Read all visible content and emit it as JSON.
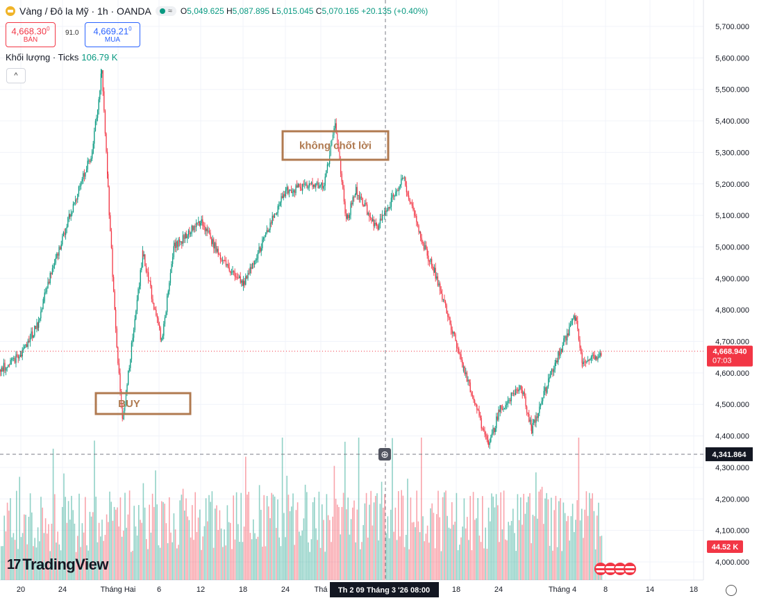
{
  "header": {
    "symbol": "Vàng / Đô la Mỹ · 1h · OANDA",
    "tag": "≈",
    "o_label": "O",
    "o": "5,049.625",
    "h_label": "H",
    "h": "5,087.895",
    "l_label": "L",
    "l": "5,015.045",
    "c_label": "C",
    "c": "5,070.165",
    "change": "+20.135 (+0.40%)"
  },
  "trade": {
    "sell_price": "4,668.30",
    "sell_sup": "0",
    "sell_label": "BÁN",
    "spread": "91.0",
    "buy_price": "4,669.21",
    "buy_sup": "0",
    "buy_label": "MUA"
  },
  "volume": {
    "label": "Khối lượng · Ticks",
    "value": "106.79 K"
  },
  "collapse": "^",
  "logo": {
    "mark": "17",
    "text": "TradingView"
  },
  "colors": {
    "up": "#089981",
    "down": "#f23645",
    "annotation": "#b07a50",
    "axis_text": "#131722",
    "grid": "#f0f3fa"
  },
  "chart_data": {
    "type": "candlestick",
    "symbol": "XAU/USD",
    "interval": "1h",
    "ylim": [
      3980,
      5760
    ],
    "y_ticks": [
      4000,
      4100,
      4200,
      4300,
      4400,
      4500,
      4600,
      4700,
      4800,
      4900,
      5000,
      5100,
      5200,
      5300,
      5400,
      5500,
      5600,
      5700
    ],
    "y_tick_labels": [
      "4,000.000",
      "4,100.000",
      "4,200.000",
      "4,300.000",
      "4,400.000",
      "4,500.000",
      "4,600.000",
      "4,700.000",
      "4,800.000",
      "4,900.000",
      "5,000.000",
      "5,100.000",
      "5,200.000",
      "5,300.000",
      "5,400.000",
      "5,500.000",
      "5,600.000",
      "5,700.000"
    ],
    "x_ticks": [
      "20",
      "24",
      "Tháng Hai",
      "6",
      "12",
      "18",
      "24",
      "Thá",
      "18",
      "24",
      "Tháng 4",
      "8",
      "14",
      "18"
    ],
    "price_path": [
      {
        "t": "start",
        "v": 4610
      },
      {
        "t": "Jan 20",
        "v": 4660
      },
      {
        "t": "Jan 22",
        "v": 4760
      },
      {
        "t": "Jan 23",
        "v": 4840
      },
      {
        "t": "Jan 26",
        "v": 5100
      },
      {
        "t": "Jan 28",
        "v": 5300
      },
      {
        "t": "Jan 29",
        "v": 5560
      },
      {
        "t": "Jan 30",
        "v": 5180
      },
      {
        "t": "Jan 31",
        "v": 4730
      },
      {
        "t": "Feb 2",
        "v": 4450
      },
      {
        "t": "Feb 4",
        "v": 4980
      },
      {
        "t": "Feb 6",
        "v": 4700
      },
      {
        "t": "Feb 9",
        "v": 5000
      },
      {
        "t": "Feb 12",
        "v": 5080
      },
      {
        "t": "Feb 16",
        "v": 4960
      },
      {
        "t": "Feb 18",
        "v": 4880
      },
      {
        "t": "Feb 23",
        "v": 5180
      },
      {
        "t": "Feb 27",
        "v": 5200
      },
      {
        "t": "Mar 1",
        "v": 5390
      },
      {
        "t": "Mar 3",
        "v": 5080
      },
      {
        "t": "Mar 5",
        "v": 5180
      },
      {
        "t": "Mar 9",
        "v": 5060
      },
      {
        "t": "Mar 12",
        "v": 5220
      },
      {
        "t": "Mar 16",
        "v": 5030
      },
      {
        "t": "Mar 18",
        "v": 4920
      },
      {
        "t": "Mar 20",
        "v": 4620
      },
      {
        "t": "Mar 23",
        "v": 4360
      },
      {
        "t": "Mar 24",
        "v": 4480
      },
      {
        "t": "Mar 27",
        "v": 4560
      },
      {
        "t": "Mar 30",
        "v": 4420
      },
      {
        "t": "Apr 2",
        "v": 4640
      },
      {
        "t": "Apr 4",
        "v": 4780
      },
      {
        "t": "Apr 6",
        "v": 4620
      },
      {
        "t": "Apr 7",
        "v": 4669
      }
    ],
    "last_price": "4,668.940",
    "countdown": "07:03",
    "crosshair_price": "4,341.864",
    "crosshair_time": "Th 2 09 Tháng 3 '26   08:00",
    "volume_last": "44.52 K",
    "annotations": [
      {
        "text": "không chốt lời"
      },
      {
        "text": "BUY"
      }
    ]
  }
}
